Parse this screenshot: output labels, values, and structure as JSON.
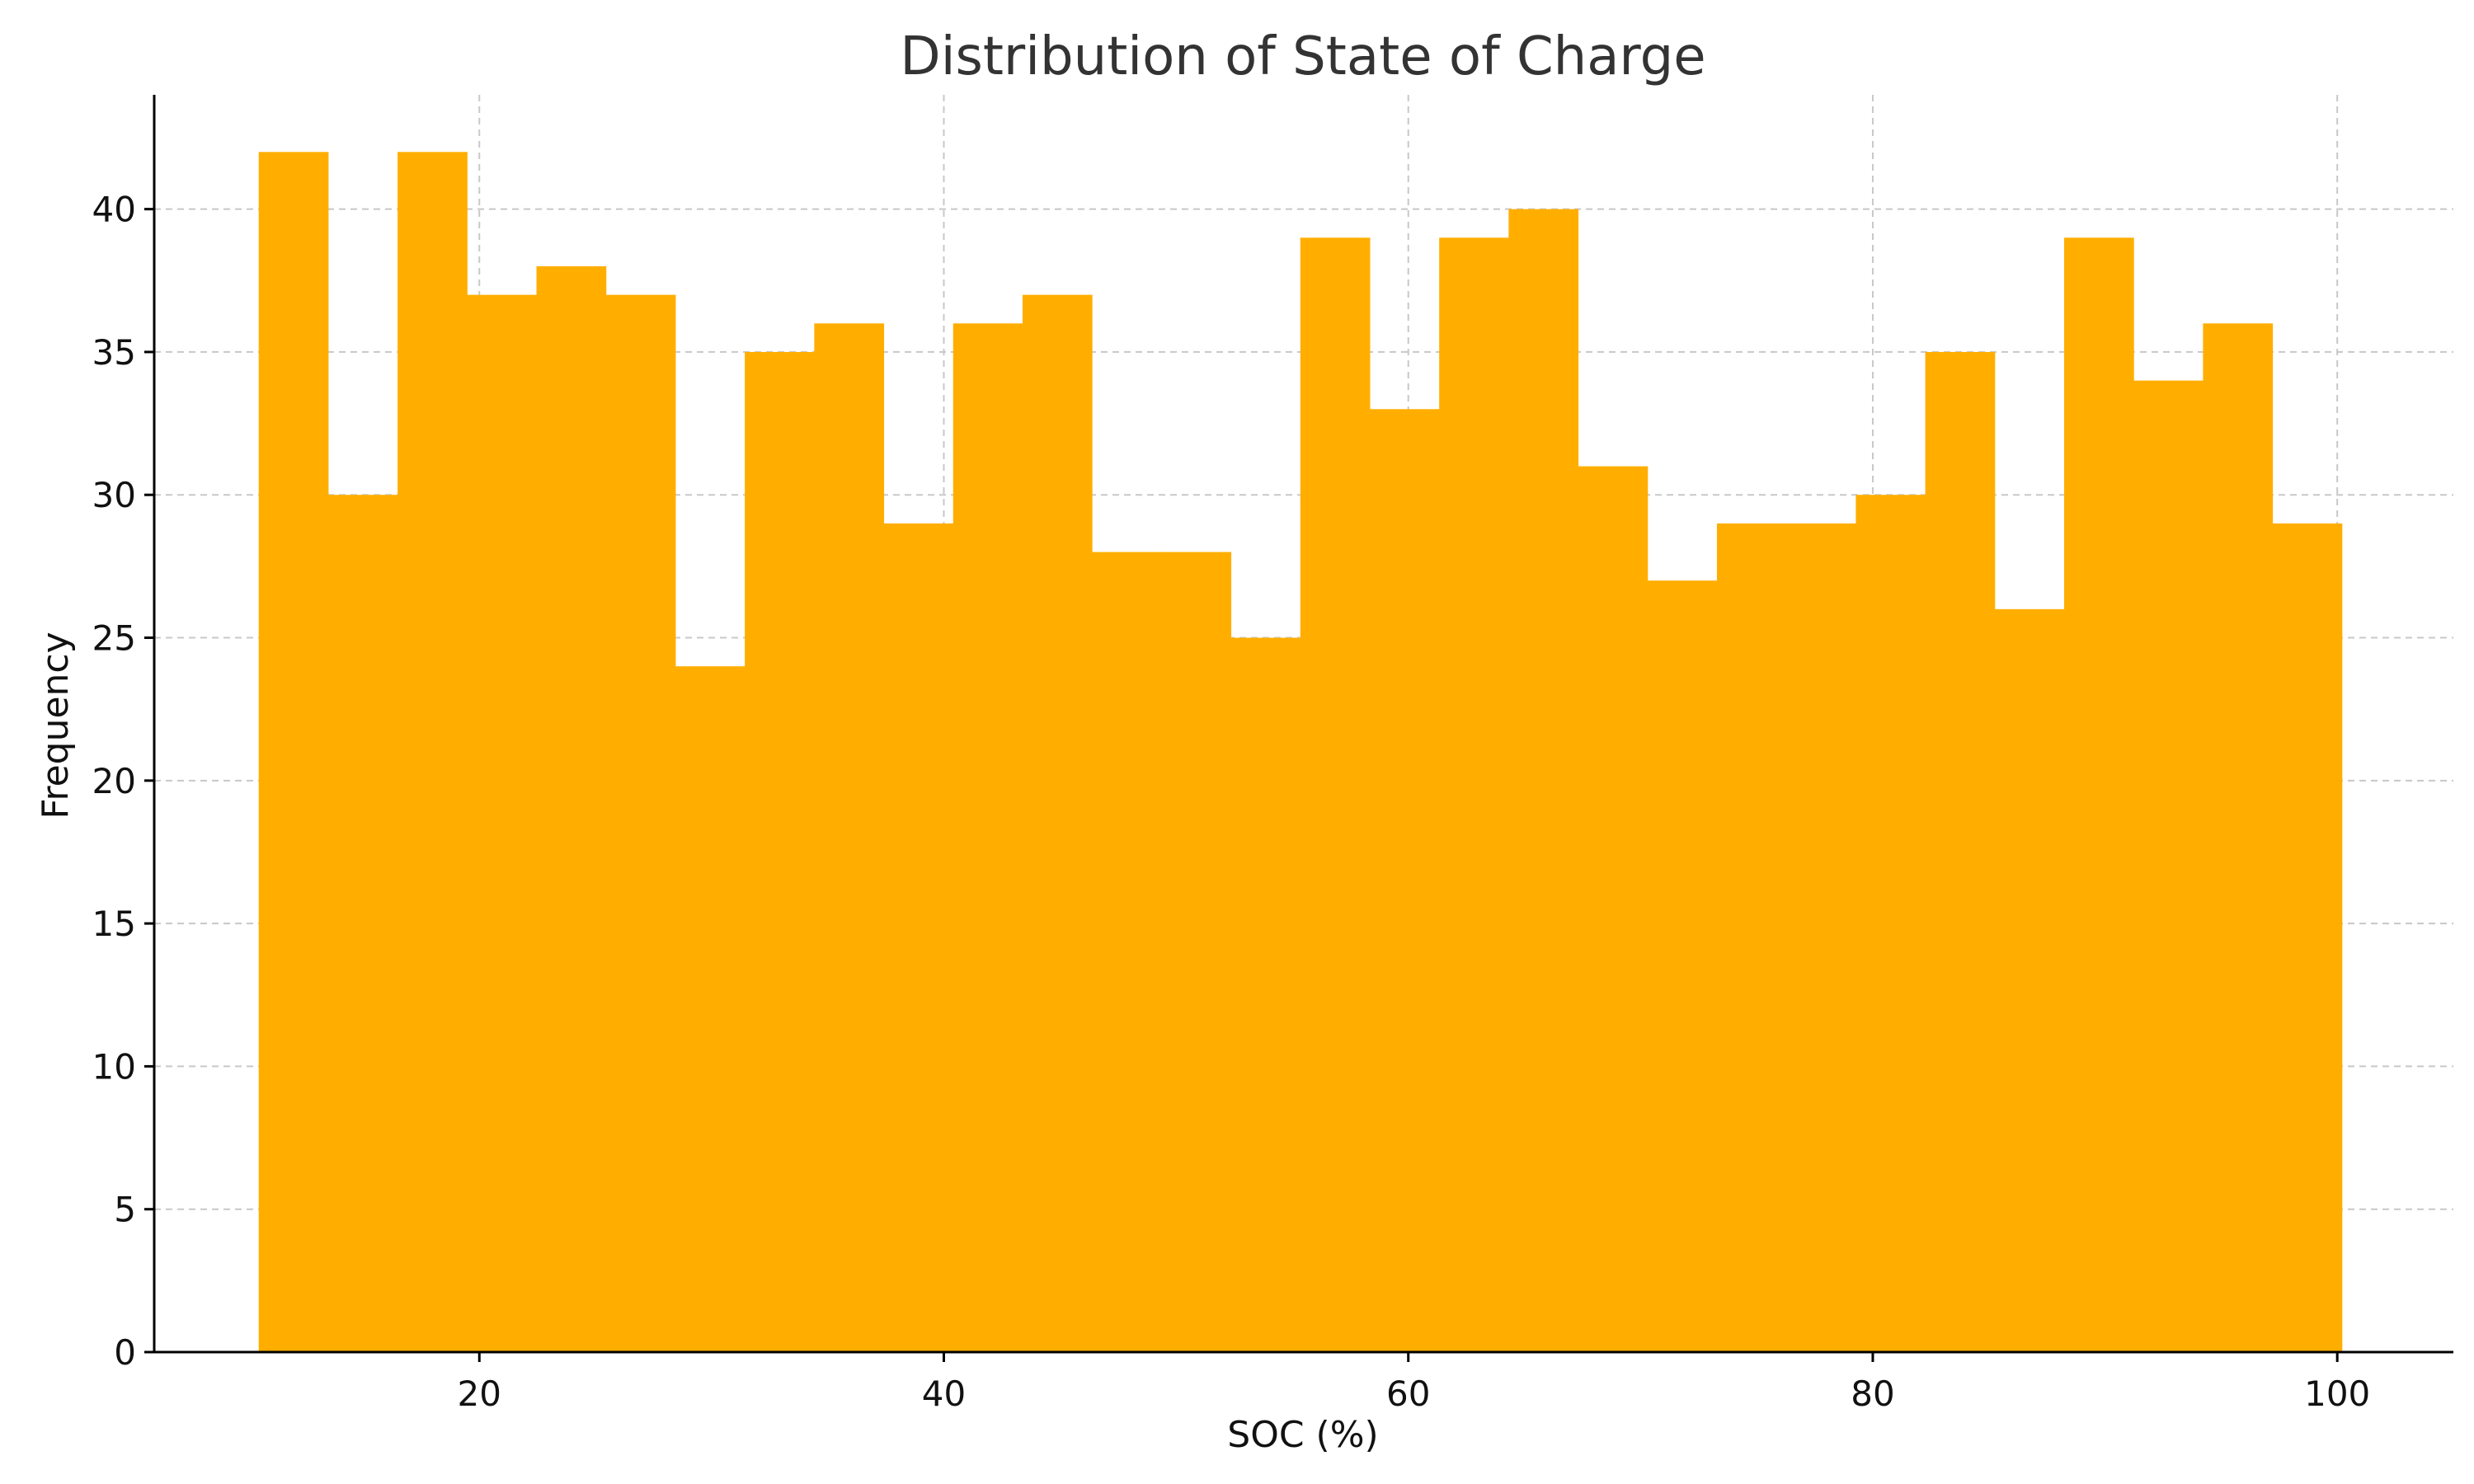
{
  "chart_data": {
    "type": "bar",
    "title": "Distribution of State of Charge",
    "xlabel": "SOC (%)",
    "ylabel": "Frequency",
    "bin_start": 10.5,
    "bin_width": 2.99,
    "values": [
      42,
      30,
      42,
      37,
      38,
      37,
      24,
      35,
      36,
      29,
      36,
      37,
      28,
      28,
      25,
      39,
      33,
      39,
      40,
      31,
      27,
      29,
      29,
      30,
      35,
      26,
      39,
      34,
      36,
      29
    ],
    "xlim": [
      6,
      105
    ],
    "ylim": [
      0,
      44
    ],
    "xticks": [
      20,
      40,
      60,
      80,
      100
    ],
    "yticks": [
      0,
      5,
      10,
      15,
      20,
      25,
      30,
      35,
      40
    ],
    "grid": true,
    "bar_color": "#FFAE00"
  }
}
